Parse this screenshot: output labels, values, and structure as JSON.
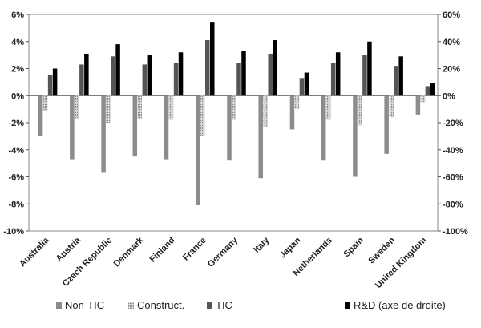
{
  "chart_data": {
    "type": "bar",
    "categories": [
      "Australia",
      "Austria",
      "Czech Republic",
      "Denmark",
      "Finland",
      "France",
      "Germany",
      "Italy",
      "Japan",
      "Netherlands",
      "Spain",
      "Sweden",
      "United Kingdom"
    ],
    "series": [
      {
        "name": "Non-TIC",
        "axis": "left",
        "color": "#8c8c8c",
        "values": [
          -3.0,
          -4.7,
          -5.7,
          -4.5,
          -4.7,
          -8.1,
          -4.8,
          -6.1,
          -2.5,
          -4.8,
          -6.0,
          -4.3,
          -1.4
        ]
      },
      {
        "name": "Construct.",
        "axis": "left",
        "color": "#b8b8b8",
        "values": [
          -1.1,
          -1.7,
          -2.0,
          -1.7,
          -1.8,
          -3.0,
          -1.8,
          -2.3,
          -1.0,
          -1.8,
          -2.2,
          -1.6,
          -0.5
        ]
      },
      {
        "name": "TIC",
        "axis": "left",
        "color": "#555555",
        "values": [
          1.5,
          2.3,
          2.9,
          2.3,
          2.4,
          4.1,
          2.4,
          3.1,
          1.3,
          2.4,
          3.0,
          2.2,
          0.7
        ]
      },
      {
        "name": "R&D (axe de droite)",
        "axis": "right",
        "color": "#000000",
        "values": [
          20,
          31,
          38,
          30,
          32,
          54,
          33,
          41,
          17,
          32,
          40,
          29,
          9
        ]
      }
    ],
    "ylim": [
      -10,
      6
    ],
    "y2lim": [
      -100,
      60
    ],
    "yticks": [
      "6%",
      "4%",
      "2%",
      "0%",
      "-2%",
      "-4%",
      "-6%",
      "-8%",
      "-10%"
    ],
    "y2ticks": [
      "60%",
      "40%",
      "20%",
      "0%",
      "-20%",
      "-40%",
      "-60%",
      "-80%",
      "-100%"
    ],
    "legend_position": "bottom",
    "grid": false
  }
}
